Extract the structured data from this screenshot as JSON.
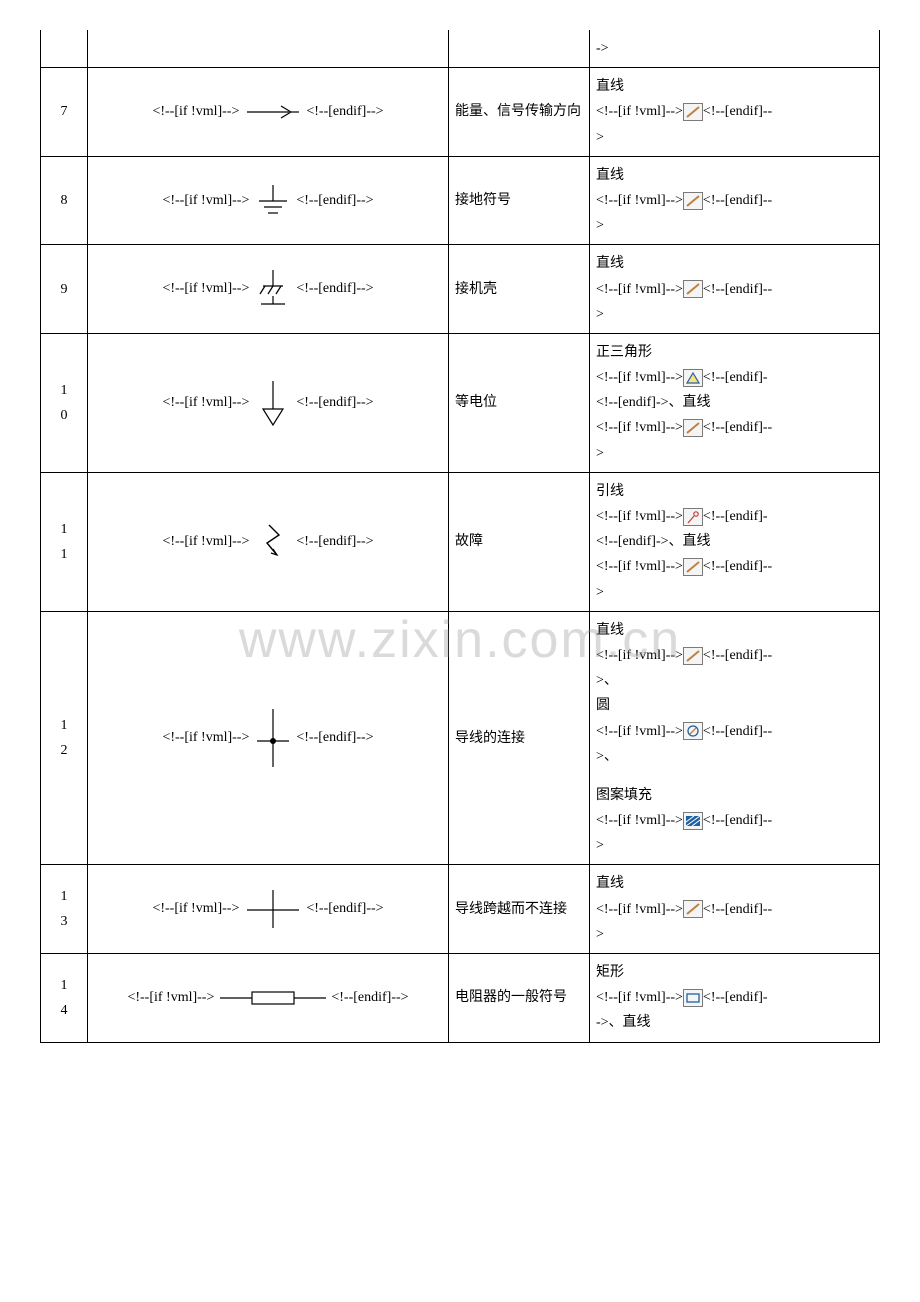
{
  "watermark": "www.zixin.com.cn",
  "vml_open": "<!--[if !vml]-->",
  "vml_close": "<!--[endif]-->",
  "vml_close_short": "<!--[endif]->",
  "sep": "、",
  "rows": [
    {
      "num": "",
      "top_fragment_only": true,
      "tool_suffix": "->"
    },
    {
      "num": "7",
      "desc": "能量、信号传输方向",
      "tool_prefix": "直线",
      "icon": "line",
      "tool_close": "long"
    },
    {
      "num": "8",
      "desc": "接地符号",
      "tool_prefix": "直线",
      "icon": "line",
      "tool_close": "long"
    },
    {
      "num": "9",
      "desc": "接机壳",
      "tool_prefix": "直线",
      "icon": "line",
      "tool_close": "long"
    },
    {
      "num": "10",
      "desc": "等电位",
      "parts": [
        {
          "label": "正三角形",
          "icon": "polygon",
          "close": "short"
        },
        {
          "label": "直线",
          "icon": "line",
          "close": "long",
          "prefix_sep": true
        }
      ]
    },
    {
      "num": "11",
      "desc": "故障",
      "parts": [
        {
          "label": "引线",
          "icon": "leader",
          "close": "short"
        },
        {
          "label": "直线",
          "icon": "line",
          "close": "long",
          "prefix_sep": true
        }
      ]
    },
    {
      "num": "12",
      "desc": "导线的连接",
      "parts": [
        {
          "label": "直线",
          "icon": "line",
          "close": "long",
          "trailing_sep": true
        },
        {
          "label": "圆",
          "icon": "circle",
          "close": "long",
          "trailing_sep": true
        },
        {
          "label": "图案填充",
          "icon": "hatch",
          "close": "long",
          "blank_before": true
        }
      ]
    },
    {
      "num": "13",
      "desc": "导线跨越而不连接",
      "tool_prefix": "直线",
      "icon": "line",
      "tool_close": "long"
    },
    {
      "num": "14",
      "desc": "电阻器的一般符号",
      "tool_prefix": "矩形",
      "icon": "rect",
      "tool_close": "short",
      "trailing": "、直线"
    }
  ],
  "icons": {
    "line_stroke": "#c08040",
    "polygon_stroke": "#2060a0",
    "polygon_fill": "#ffe080",
    "leader_stroke": "#c04040",
    "circle_stroke": "#2060a0",
    "circle_inner": "#c08040",
    "rect_stroke": "#2060a0",
    "hatch_bg": "#2060a0"
  }
}
